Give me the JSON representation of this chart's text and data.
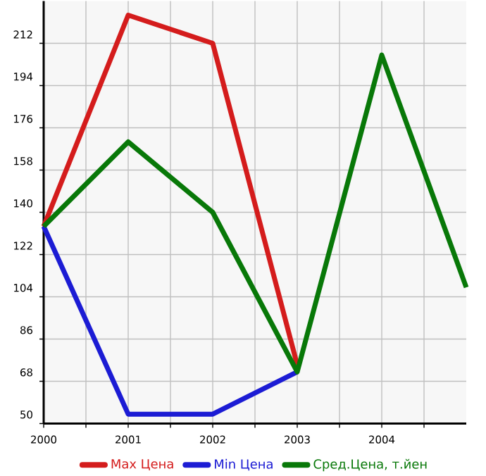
{
  "chart_data": {
    "type": "line",
    "x": [
      2000,
      2001,
      2002,
      2003,
      2004,
      2005
    ],
    "series": [
      {
        "name": "Max Цена",
        "color": "#d41c1c",
        "values": [
          134,
          224,
          212,
          75,
          null,
          null
        ]
      },
      {
        "name": "Min Цена",
        "color": "#1c1cd4",
        "values": [
          134,
          54,
          54,
          72,
          null,
          null
        ]
      },
      {
        "name": "Сред.Цена, т.йен",
        "color": "#087808",
        "values": [
          134,
          170,
          140,
          72,
          207,
          108
        ]
      }
    ],
    "xlim": [
      2000,
      2005
    ],
    "xticks": [
      2000,
      {
        "value": 2000.5,
        "label": null
      },
      2001,
      {
        "value": 2001.5,
        "label": null
      },
      2002,
      {
        "value": 2002.5,
        "label": null
      },
      2003,
      {
        "value": 2003.5,
        "label": null
      },
      2004,
      {
        "value": 2004.5,
        "label": null
      }
    ],
    "ylim": [
      50,
      230
    ],
    "yticks": [
      50,
      68,
      86,
      104,
      122,
      140,
      158,
      176,
      194,
      212
    ],
    "grid": true,
    "legend": "bottom",
    "marker": "none",
    "line_style": "solid"
  }
}
